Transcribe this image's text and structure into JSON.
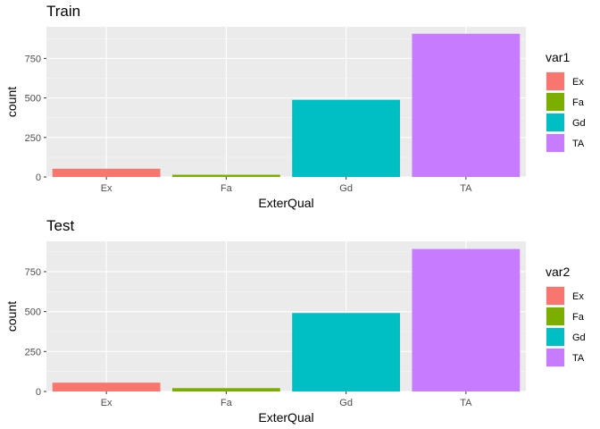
{
  "chart_data": [
    {
      "type": "bar",
      "title": "Train",
      "xlabel": "ExterQual",
      "ylabel": "count",
      "categories": [
        "Ex",
        "Fa",
        "Gd",
        "TA"
      ],
      "values": [
        52,
        14,
        488,
        906
      ],
      "colors": [
        "#F8766D",
        "#7CAE00",
        "#00BFC4",
        "#C77CFF"
      ],
      "ylim": [
        0,
        950
      ],
      "yticks": [
        0,
        250,
        500,
        750
      ],
      "grid": true,
      "legend": {
        "title": "var1",
        "position": "right",
        "entries": [
          "Ex",
          "Fa",
          "Gd",
          "TA"
        ]
      }
    },
    {
      "type": "bar",
      "title": "Test",
      "xlabel": "ExterQual",
      "ylabel": "count",
      "categories": [
        "Ex",
        "Fa",
        "Gd",
        "TA"
      ],
      "values": [
        55,
        21,
        491,
        892
      ],
      "colors": [
        "#F8766D",
        "#7CAE00",
        "#00BFC4",
        "#C77CFF"
      ],
      "ylim": [
        0,
        940
      ],
      "yticks": [
        0,
        250,
        500,
        750
      ],
      "grid": true,
      "legend": {
        "title": "var2",
        "position": "right",
        "entries": [
          "Ex",
          "Fa",
          "Gd",
          "TA"
        ]
      }
    }
  ]
}
